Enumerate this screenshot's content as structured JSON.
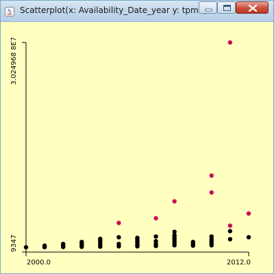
{
  "window": {
    "title": "Scatterplot(x: Availability_Date_year y: tpmC)",
    "app_icon": "java-icon",
    "controls": [
      "minimize-icon",
      "maximize-icon",
      "close-icon"
    ]
  },
  "colors": {
    "background": "#ffffc0",
    "point_default": "#000000",
    "point_highlight": "#c8105a"
  },
  "chart_data": {
    "type": "scatter",
    "title": "",
    "xlabel": "",
    "ylabel": "",
    "x_tick_labels": [
      "2000.0",
      "2012.0"
    ],
    "y_tick_labels": [
      "9347",
      "3.024968 8E7"
    ],
    "y_tick_text_min": "9347",
    "y_tick_text_max": "3.024968 8E7",
    "xlim": [
      2000,
      2012
    ],
    "ylim": [
      9347,
      30249688
    ],
    "series": [
      {
        "color": "#000000",
        "points": [
          [
            2000,
            9347
          ],
          [
            2001,
            30000
          ],
          [
            2001,
            250000
          ],
          [
            2002,
            60000
          ],
          [
            2002,
            300000
          ],
          [
            2002,
            500000
          ],
          [
            2003,
            80000
          ],
          [
            2003,
            300000
          ],
          [
            2003,
            550000
          ],
          [
            2003,
            800000
          ],
          [
            2004,
            100000
          ],
          [
            2004,
            400000
          ],
          [
            2004,
            700000
          ],
          [
            2004,
            1000000
          ],
          [
            2004,
            1250000
          ],
          [
            2005,
            150000
          ],
          [
            2005,
            500000
          ],
          [
            2005,
            1500000
          ],
          [
            2006,
            150000
          ],
          [
            2006,
            400000
          ],
          [
            2006,
            700000
          ],
          [
            2006,
            900000
          ],
          [
            2006,
            1150000
          ],
          [
            2006,
            1400000
          ],
          [
            2007,
            200000
          ],
          [
            2007,
            500000
          ],
          [
            2007,
            900000
          ],
          [
            2007,
            1600000
          ],
          [
            2008,
            300000
          ],
          [
            2008,
            600000
          ],
          [
            2008,
            900000
          ],
          [
            2008,
            1200000
          ],
          [
            2008,
            1500000
          ],
          [
            2008,
            1800000
          ],
          [
            2008,
            2300000
          ],
          [
            2009,
            250000
          ],
          [
            2009,
            500000
          ],
          [
            2009,
            800000
          ],
          [
            2010,
            300000
          ],
          [
            2010,
            600000
          ],
          [
            2010,
            900000
          ],
          [
            2010,
            1200000
          ],
          [
            2010,
            1600000
          ],
          [
            2011,
            1200000
          ],
          [
            2011,
            2400000
          ],
          [
            2012,
            1500000
          ]
        ]
      },
      {
        "color": "#c8105a",
        "points": [
          [
            2005,
            3600000
          ],
          [
            2007,
            4300000
          ],
          [
            2008,
            6800000
          ],
          [
            2010,
            8100000
          ],
          [
            2010,
            10600000
          ],
          [
            2011,
            3200000
          ],
          [
            2011,
            30249688
          ],
          [
            2012,
            5000000
          ]
        ]
      }
    ]
  }
}
